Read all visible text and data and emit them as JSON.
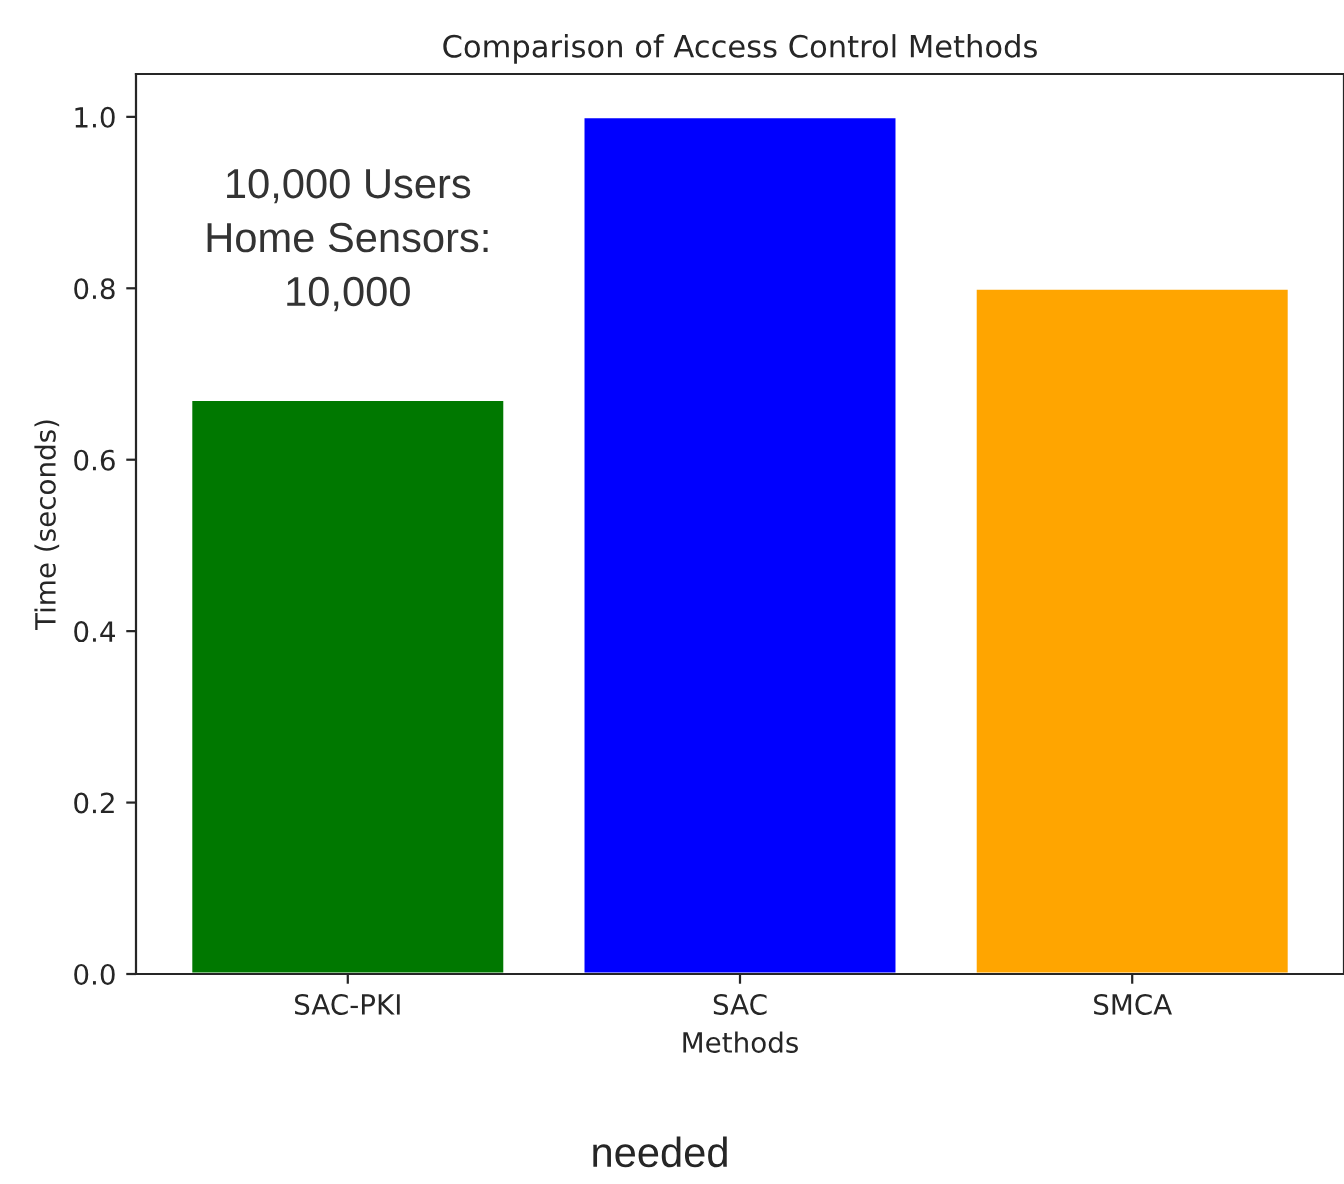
{
  "chart_data": {
    "type": "bar",
    "title": "Comparison of Access Control Methods",
    "xlabel": "Methods",
    "ylabel": "Time (seconds)",
    "categories": [
      "SAC-PKI",
      "SAC",
      "SMCA"
    ],
    "values": [
      0.67,
      1.0,
      0.8
    ],
    "colors": [
      "#007800",
      "#0000ff",
      "#ffa500"
    ],
    "ylim": [
      0,
      1.05
    ],
    "yticks": [
      {
        "value": 0,
        "label": "0.0"
      },
      0.2,
      0.4,
      0.6,
      0.8,
      {
        "value": 1,
        "label": "1.0"
      }
    ],
    "grid": false,
    "legend": false,
    "annotations": [
      "10,000 Users\nHome Sensors:\n10,000",
      "needed"
    ]
  }
}
